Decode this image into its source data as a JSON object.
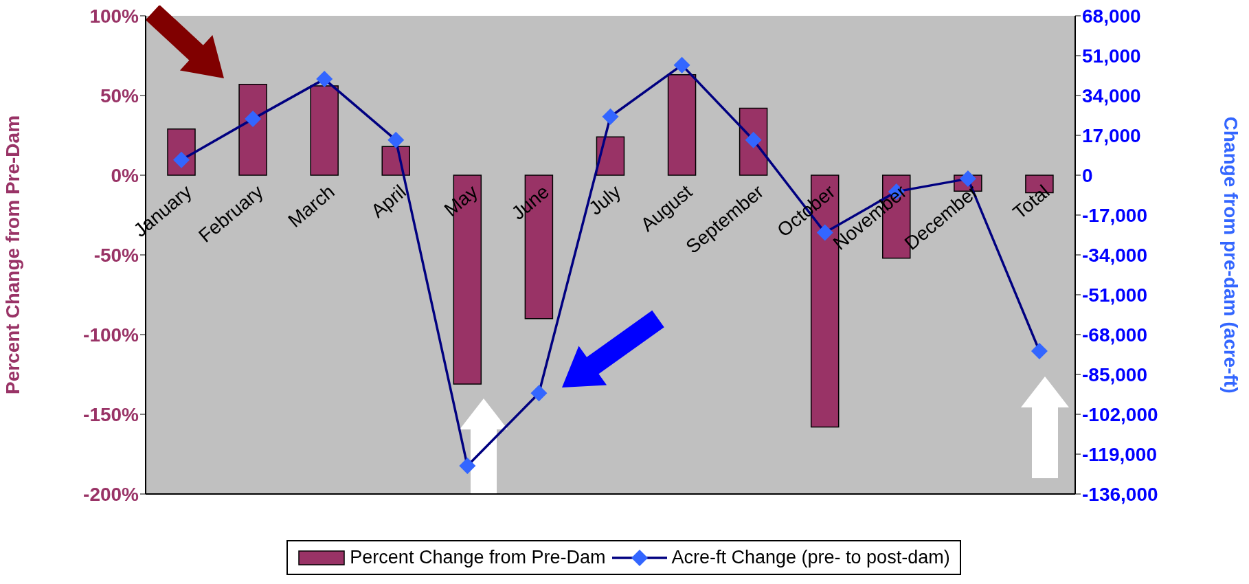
{
  "chart_data": {
    "type": "bar",
    "categories": [
      "January",
      "February",
      "March",
      "April",
      "May",
      "June",
      "July",
      "August",
      "September",
      "October",
      "November",
      "December",
      "Total"
    ],
    "ylabel": "Percent Change from Pre-Dam",
    "y2label": "Change from pre-dam (acre-ft)",
    "ylim": [
      -200,
      100
    ],
    "yticks": [
      {
        "value": -200,
        "label": "-200%"
      },
      {
        "value": -150,
        "label": "-150%"
      },
      {
        "value": -100,
        "label": "-100%"
      },
      {
        "value": -50,
        "label": "-50%"
      },
      {
        "value": 0,
        "label": "0%"
      },
      {
        "value": 50,
        "label": "50%"
      },
      {
        "value": 100,
        "label": "100%"
      }
    ],
    "y2lim": [
      -136000,
      68000
    ],
    "y2ticks": [
      {
        "value": -136000,
        "label": "-136,000"
      },
      {
        "value": -119000,
        "label": "-119,000"
      },
      {
        "value": -102000,
        "label": "-102,000"
      },
      {
        "value": -85000,
        "label": "-85,000"
      },
      {
        "value": -68000,
        "label": "-68,000"
      },
      {
        "value": -51000,
        "label": "-51,000"
      },
      {
        "value": -34000,
        "label": "-34,000"
      },
      {
        "value": -17000,
        "label": "-17,000"
      },
      {
        "value": 0,
        "label": "0"
      },
      {
        "value": 17000,
        "label": "17,000"
      },
      {
        "value": 34000,
        "label": "34,000"
      },
      {
        "value": 51000,
        "label": "51,000"
      },
      {
        "value": 68000,
        "label": "68,000"
      }
    ],
    "grid": false,
    "legend": "bottom",
    "marker": "diamond",
    "series": [
      {
        "name": "Percent Change from Pre-Dam",
        "color": "#993366",
        "values": [
          29,
          57,
          56,
          18,
          -131,
          -90,
          24,
          63,
          42,
          -158,
          -52,
          -10,
          -11
        ]
      },
      {
        "name": "Acre-ft Change (pre- to post-dam)",
        "type": "line",
        "axis": "y2",
        "color": "#000080",
        "values": [
          6500,
          24000,
          41000,
          15000,
          -124000,
          -93000,
          25000,
          47000,
          15000,
          -24500,
          -7000,
          -1500,
          -75000
        ]
      }
    ]
  }
}
